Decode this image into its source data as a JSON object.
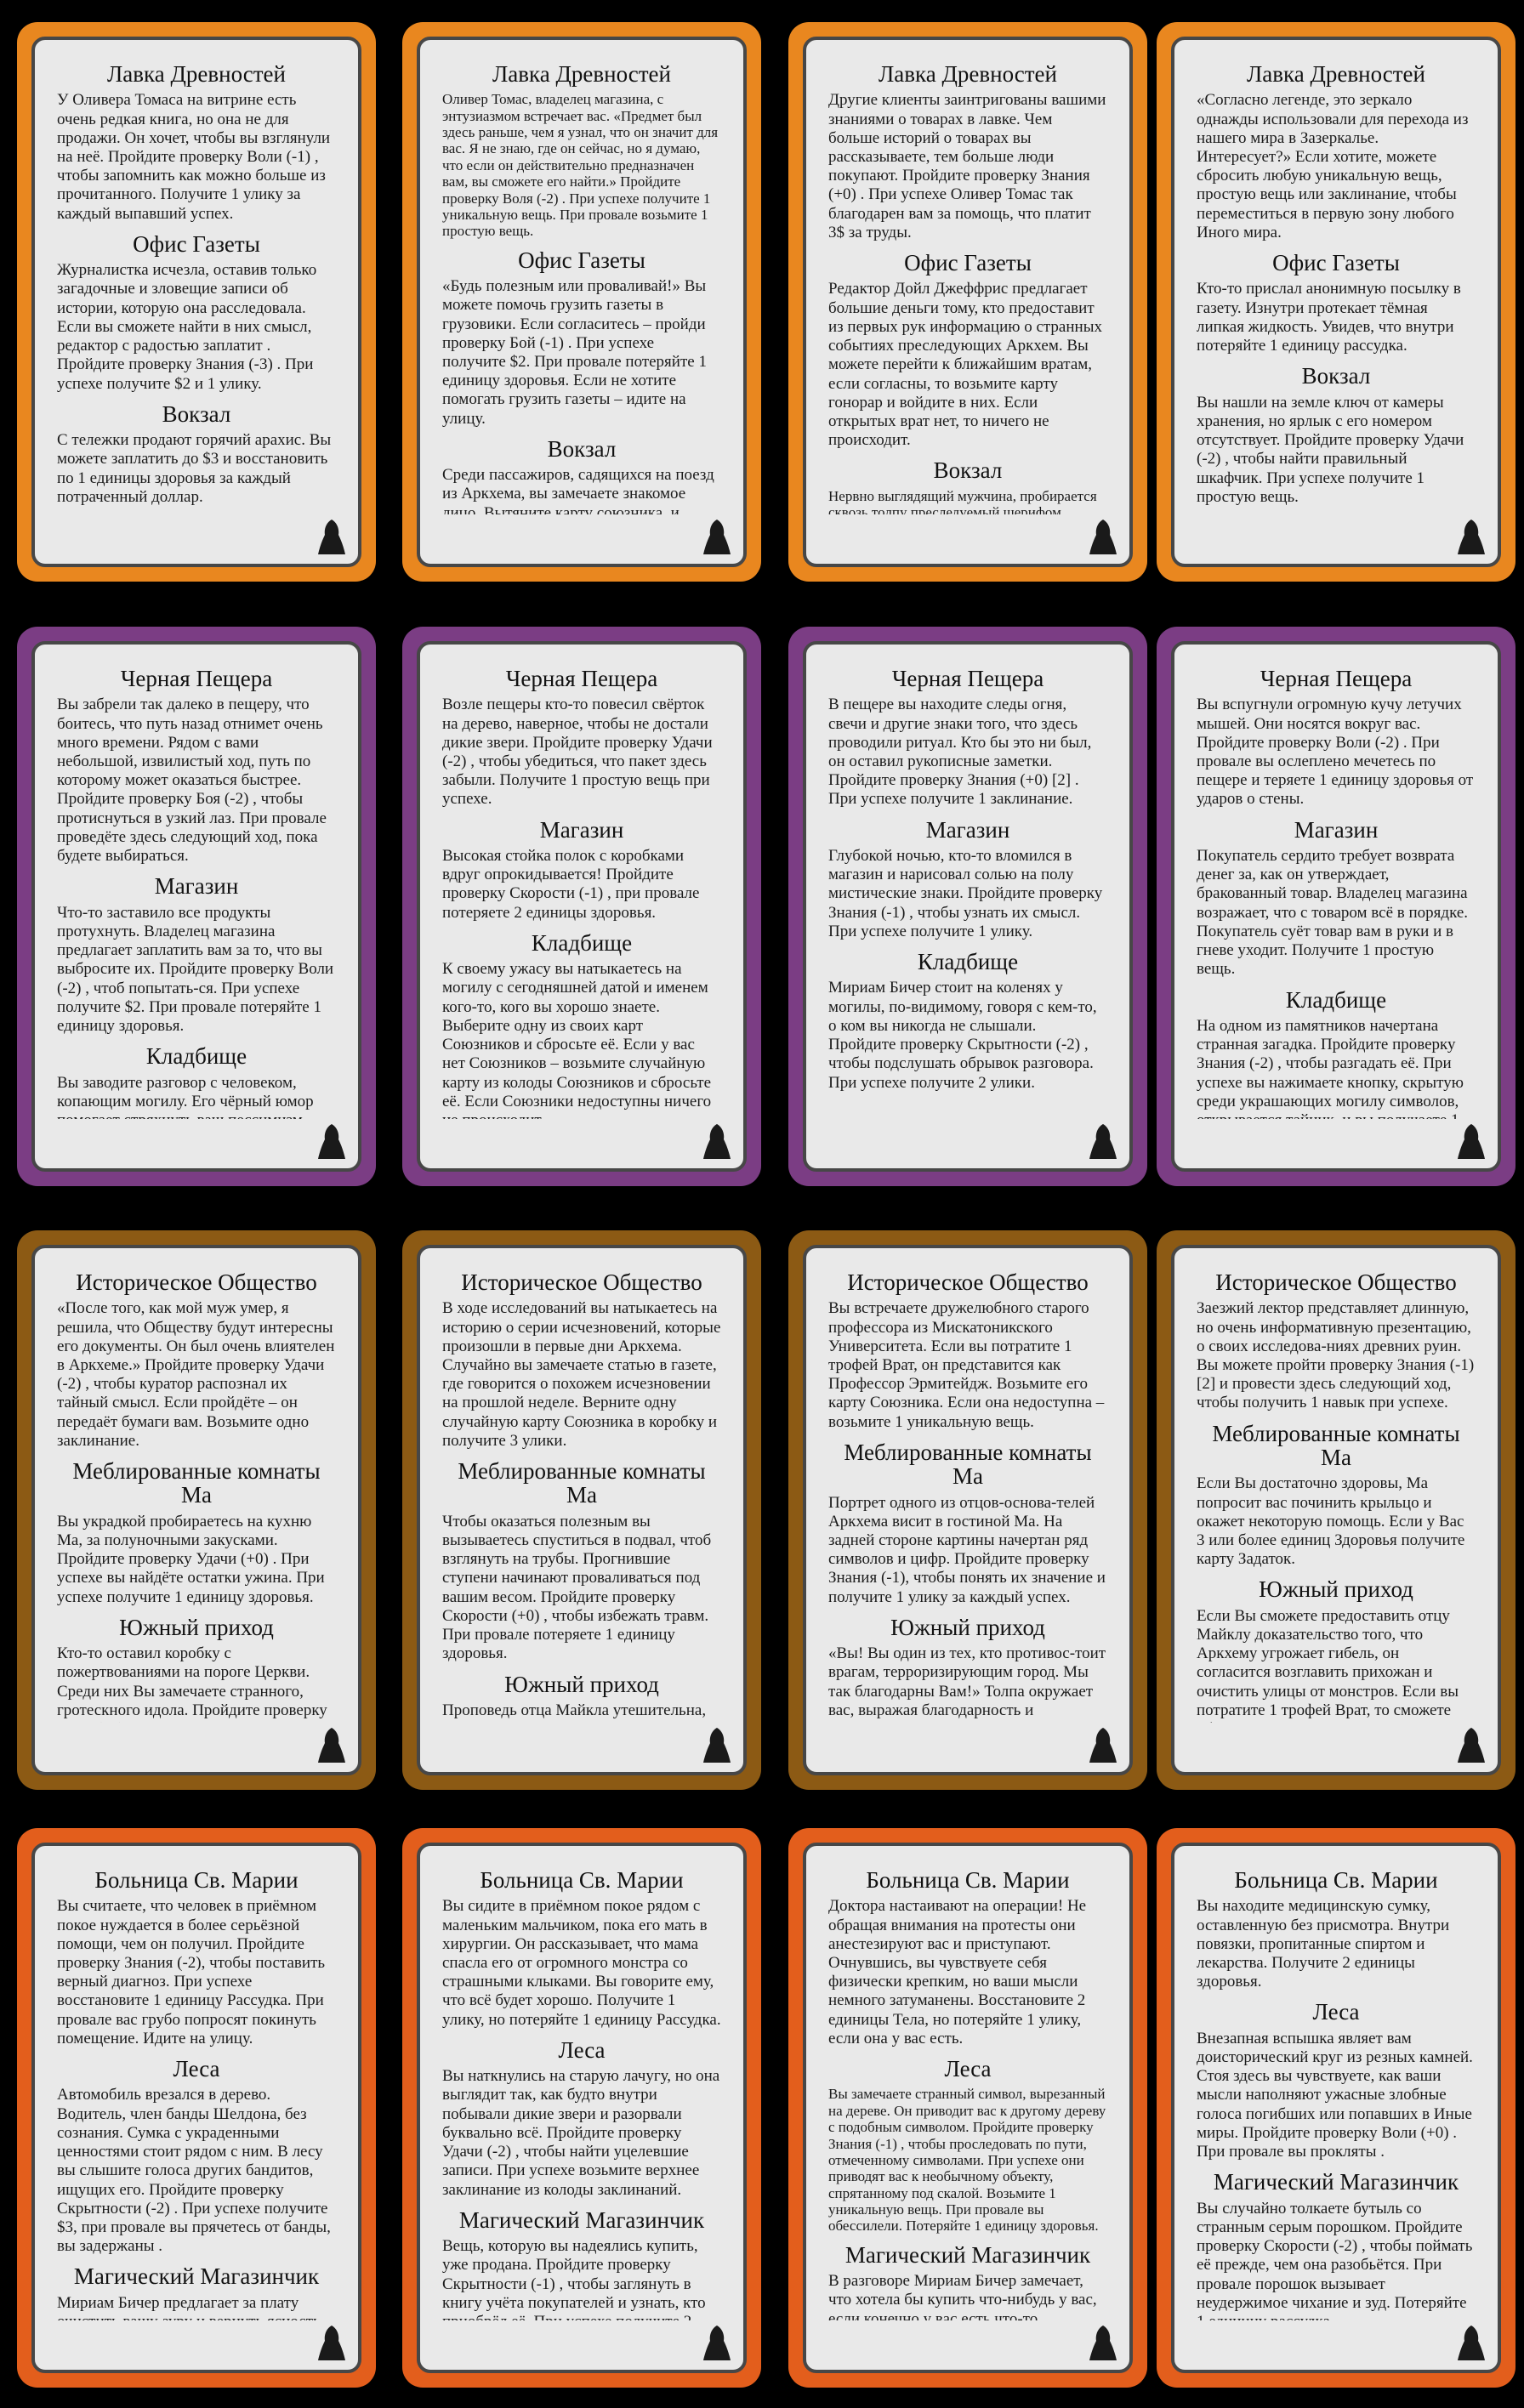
{
  "cards": [
    {
      "color": "#e9871f",
      "sections": [
        {
          "title": "Лавка Древностей",
          "text": "У Оливера Томаса на витрине есть очень редкая книга, но она не для продажи. Он хочет, чтобы вы взглянули на неё. Пройдите проверку Воли (-1) , чтобы запомнить как можно больше из прочитанного. Получите 1 улику за каждый выпавший успех."
        },
        {
          "title": "Офис Газеты",
          "text": "Журналистка исчезла, оставив только загадочные и зловещие записи об истории, которую она расследовала. Если вы сможете найти в них смысл, редактор с радостью заплатит . Пройдите проверку Знания (-3) . При успехе получите $2 и 1 улику."
        },
        {
          "title": "Вокзал",
          "text": "С тележки продают горячий арахис. Вы можете заплатить до $3 и восстановить по 1 единицы здоровья за каждый потраченный доллар."
        }
      ]
    },
    {
      "color": "#e9871f",
      "sections": [
        {
          "title": "Лавка Древностей",
          "text": "Оливер Томас, владелец магазина, с энтузиазмом встречает вас. «Предмет был здесь раньше, чем я узнал, что он значит для вас. Я не знаю, где он сейчас, но я думаю, что если он действительно предназначен вам, вы сможете его найти.» Пройдите проверку Воля (-2) . При успехе получите 1 уникальную вещь. При провале возьмите 1 простую вещь."
        },
        {
          "title": "Офис Газеты",
          "text": "«Будь полезным или проваливай!» Вы можете помочь грузить газеты в грузовики. Если согласитесь – пройди проверку Бой (-1) . При успехе получите $2. При провале потеряйте 1 единицу здоровья. Если не хотите помогать грузить газеты – идите на улицу."
        },
        {
          "title": "Вокзал",
          "text": "Среди пассажиров, садящихся на поезд из Аркхема, вы замечаете знакомое лицо. Вытяните карту союзника, и пройдите проверку Воля (-2) [2] . При успехе вы убеждаете друга остаться и мочь вам, оставьте эту карту себе. При провале верните карту союзника в коробку."
        }
      ]
    },
    {
      "color": "#e9871f",
      "sections": [
        {
          "title": "Лавка Древностей",
          "text": "Другие клиенты заинтригованы вашими знаниями о товарах в лавке. Чем больше историй о товарах вы рассказываете, тем больше люди покупают. Пройдите проверку Знания (+0) . При успехе Оливер Томас так благодарен вам за помощь, что платит 3$ за труды."
        },
        {
          "title": "Офис Газеты",
          "text": "Редактор Дойл Джеффрис предлагает большие деньги тому, кто предоставит из первых рук информацию о странных событиях преследующих Аркхем. Вы можете перейти к ближайшим вратам, если согласны, то возьмите карту гонорар и войдите в них. Если открытых врат нет, то ничего не происходит."
        },
        {
          "title": "Вокзал",
          "text": "Нервно выглядящий мужчина, пробирается сквозь толпу преследуемый шерифом Энглом. Столкнувшись с вами он падает на землю и роняет свёрток . Вы видите что на нём слово - рукопис. Пройдите проверку Скорости (-2) чтобы успеть схватить свёрток и скрыться до прибытия шерифа. При успехе получите 1 уникальный предмет."
        }
      ]
    },
    {
      "color": "#e9871f",
      "sections": [
        {
          "title": "Лавка Древностей",
          "text": "«Согласно легенде, это зеркало однажды использовали для перехода из нашего мира в Зазеркалье. Интересует?» Если хотите, можете сбросить любую уникальную вещь, простую вещь или заклинание, чтобы переместиться в первую зону любого Иного мира."
        },
        {
          "title": "Офис Газеты",
          "text": "Кто-то прислал анонимную посылку в газету. Изнутри протекает тёмная липкая жидкость. Увидев, что внутри потеряйте 1 единицу рассудка."
        },
        {
          "title": "Вокзал",
          "text": "Вы нашли на земле ключ от камеры хранения, но ярлык с его номером отсутствует. Пройдите проверку Удачи (-2) , чтобы найти правильный шкафчик. При успехе получите 1 простую вещь."
        }
      ]
    },
    {
      "color": "#7b3d84",
      "sections": [
        {
          "title": "Черная Пещера",
          "text": "Вы забрели так далеко в пещеру, что боитесь, что путь назад отнимет очень много времени. Рядом с вами небольшой, извилистый ход, путь по которому может оказаться быстрее. Пройдите проверку Боя (-2) , чтобы протиснуться в узкий лаз. При провале проведёте здесь следующий ход, пока будете выбираться."
        },
        {
          "title": "Магазин",
          "text": "Что-то заставило все продукты протухнуть. Владелец магазина предлагает заплатить вам за то, что вы выбросите их. Пройдите проверку Воли (-2) , чтоб попытать-ся. При успехе получите $2. При провале потеряйте 1 единицу здоровья."
        },
        {
          "title": "Кладбище",
          "text": "Вы заводите разговор с человеком, копающим могилу. Его чёрный юмор помогает стряхнуть ваш пессимизм. Восстановите 1 единицу рассудка."
        }
      ]
    },
    {
      "color": "#7b3d84",
      "sections": [
        {
          "title": "Черная Пещера",
          "text": "Возле пещеры кто-то повесил свёрток на дерево, наверное, чтобы не достали дикие звери. Пройдите проверку Удачи (-2) , чтобы убедиться, что пакет здесь забыли. Получите 1 простую вещь при успехе."
        },
        {
          "title": "Магазин",
          "text": "Высокая стойка полок с коробками вдруг опрокидывается! Пройдите проверку Скорости (-1) , при провале потеряете 2 единицы здоровья."
        },
        {
          "title": "Кладбище",
          "text": "К своему ужасу вы натыкаетесь на могилу с сегодняшней датой и именем кого-то, кого вы хорошо знаете. Выберите одну из своих карт Союзников и сбросьте её. Если у вас нет Союзников – возьмите случайную карту из колоды Союзников и сбросьте её. Если Союзники недоступны ничего не происходит."
        }
      ]
    },
    {
      "color": "#7b3d84",
      "sections": [
        {
          "title": "Черная Пещера",
          "text": "В пещере вы находите следы огня, свечи и другие знаки того, что здесь проводили ритуал. Кто бы это ни был, он оставил рукописные заметки. Пройдите проверку Знания (+0) [2] . При успехе получите 1 заклинание."
        },
        {
          "title": "Магазин",
          "text": "Глубокой ночью, кто-то вломился в магазин и нарисовал солью на полу мистические знаки. Пройдите проверку Знания (-1) , чтобы узнать их смысл. При успехе получите 1 улику."
        },
        {
          "title": "Кладбище",
          "text": "Мириам Бичер стоит на коленях у могилы, по-видимому, говоря с кем-то, о ком вы никогда не слышали. Пройдите проверку Скрытности (-2) , чтобы подслушать обрывок разговора. При успехе получите 2 улики."
        }
      ]
    },
    {
      "color": "#7b3d84",
      "sections": [
        {
          "title": "Черная Пещера",
          "text": "Вы вспугнули огромную кучу летучих мышей. Они носятся вокруг вас. Пройдите проверку Воли (-2) . При провале вы ослеплено мечетесь по пещере и теряете 1 единицу здоровья от ударов о стены."
        },
        {
          "title": "Магазин",
          "text": "Покупатель сердито требует возврата денег за, как он утверждает, бракованный товар. Владелец магазина возражает, что с товаром всё в порядке. Покупатель суёт товар вам в руки и в гневе уходит. Получите 1 простую вещь."
        },
        {
          "title": "Кладбище",
          "text": "На одном из памятников начертана странная загадка. Пройдите проверку Знания (-2) , чтобы разгадать её. При успехе вы нажимаете кнопку, скрытую среди украшающих могилу символов, открывается тайник, и вы получаете 1 уникальную вещь. При провале ничего не происходит."
        }
      ]
    },
    {
      "color": "#8c5a14",
      "sections": [
        {
          "title": "Историческое Общество",
          "text": "«После того, как мой муж умер, я решила, что Обществу будут интересны его документы. Он был очень влиятелен в Аркхеме.» Пройдите проверку Удачи (-2) , чтобы куратор распознал их тайный смысл. Если пройдёте – он передаёт бумаги вам. Возьмите одно заклинание."
        },
        {
          "title": "Меблированные комнаты Ма",
          "text": "Вы украдкой пробираетесь на кухню Ма, за полуночными закусками. Пройдите проверку Удачи (+0) . При успехе вы найдёте остатки ужина. При успехе получите 1 единицу здоровья."
        },
        {
          "title": "Южный приход",
          "text": "Кто-то оставил коробку с пожертвованиями на пороге Церкви. Среди них Вы замечаете странного, гротескного идола. Пройдите проверку Воли (+0) . При провале вы проклять ."
        }
      ]
    },
    {
      "color": "#8c5a14",
      "sections": [
        {
          "title": "Историческое Общество",
          "text": "В ходе исследований вы натыкаетесь на историю о серии исчезновений, которые произошли в первые дни Аркхема. Случайно вы замечаете статью в газете, где говорится о похожем исчезновении на прошлой неделе. Верните одну случайную карту Союзника в коробку и получите 3 улики."
        },
        {
          "title": "Меблированные комнаты Ма",
          "text": "Чтобы оказаться полезным вы вызываетесь спуститься в подвал, чтоб взглянуть на трубы. Прогнившие ступени начинают проваливаться под вашим весом. Пройдите проверку Скорости (+0) , чтобы избежать травм. При провале потеряете 1 единицу здоровья."
        },
        {
          "title": "Южный приход",
          "text": "Проповедь отца Майкла утешительна, но немного скучна, и вы задремали. Проведите здесь следующий ход и восстановите Рассудок до максимума."
        }
      ]
    },
    {
      "color": "#8c5a14",
      "sections": [
        {
          "title": "Историческое Общество",
          "text": "Вы встречаете дружелюбного старого профессора из Мискатоникского Университета. Если вы потратите 1 трофей Врат, он представится как Профессор Эрмитейдж. Возьмите его карту Союзника. Если она недоступна – возьмите 1 уникальную вещь."
        },
        {
          "title": "Меблированные комнаты Ма",
          "text": "Портрет одного из отцов-основа-телей Аркхема висит в гостиной Ма. На задней стороне картины начертан ряд символов и цифр. Пройдите проверку Знания (-1), чтобы понять их значение и получите 1 улику за каждый успех."
        },
        {
          "title": "Южный приход",
          "text": "«Вы! Вы один из тех, кто противос-тоит врагам, терроризирующим город. Мы так благодарны Вам!» Толпа окружает вас, выражая благодарность и восхищение. Получите 2 единицы рассудка."
        }
      ]
    },
    {
      "color": "#8c5a14",
      "sections": [
        {
          "title": "Историческое Общество",
          "text": "Заезжий лектор представляет длинную, но очень информативную презентацию, о своих исследова-ниях древних руин. Вы можете пройти проверку Знания (-1) [2] и провести здесь следующий ход, чтобы получить 1 навык при успехе."
        },
        {
          "title": "Меблированные комнаты Ма",
          "text": "Если Вы достаточно здоровы, Ма попросит вас починить крыльцо и окажет некоторую помощь. Если у Вас 3 или более единиц Здоровья получите карту Задаток."
        },
        {
          "title": "Южный приход",
          "text": "Если Вы сможете предоставить отцу Майклу доказательство того, что Аркхему угрожает гибель, он согласится возглавить прихожан и очистить улицы от монстров. Если вы потратите 1 трофей Врат, то сможете убрать всех монстров из района Саутсайд."
        }
      ]
    },
    {
      "color": "#e35e1c",
      "sections": [
        {
          "title": "Больница Св. Марии",
          "text": "Вы считаете, что человек в приёмном покое нуждается в более серьёзной помощи, чем он получил. Пройдите проверку Знания (-2), чтобы поставить верный диагноз. При успехе восстановите 1 единицу Рассудка. При провале вас грубо попросят покинуть помещение. Идите на улицу."
        },
        {
          "title": "Леса",
          "text": "Автомобиль врезался в дерево. Водитель, член банды Шелдона, без сознания. Сумка с украденными ценностями стоит рядом с ним. В лесу вы слышите голоса других бандитов, ищущих его. Пройдите проверку Скрытности (-2) . При успехе получите $3, при провале вы прячетесь от банды, вы задержаны ."
        },
        {
          "title": "Магический Магазинчик",
          "text": "Мириам Бичер предлагает за плату очистить вашу ауру и вернуть ясность разуму. Если вы сбросите одну уникальную вещь и потратите $3, то будете благословлены ."
        }
      ]
    },
    {
      "color": "#e35e1c",
      "sections": [
        {
          "title": "Больница Св. Марии",
          "text": "Вы сидите в приёмном покое рядом с маленьким мальчиком, пока его мать в хирургии. Он рассказывает, что мама спасла его от огромного монстра со страшными клыками. Вы говорите ему, что всё будет хорошо. Получите 1 улику, но потеряйте 1 единицу Рассудка."
        },
        {
          "title": "Леса",
          "text": "Вы наткнулись на старую лачугу, но она выглядит так, как будто внутри побывали дикие звери и разорвали буквально всё. Пройдите проверку Удачи (-2) , чтобы найти уцелевшие записи. При успехе возьмите верхнее заклинание из колоды заклинаний."
        },
        {
          "title": "Магический Магазинчик",
          "text": "Вещь, которую вы надеялись купить, уже продана. Пройдите проверку Скрытности (-1) , чтобы заглянуть в книгу учёта покупателей и узнать, кто приобрёл её. При успехе получите 2 улики."
        }
      ]
    },
    {
      "color": "#e35e1c",
      "sections": [
        {
          "title": "Больница Св. Марии",
          "text": "Доктора настаивают на операции! Не обращая внимания на протесты они анестезируют вас и приступают. Очнувшись, вы чувствуете себя физически крепким, но ваши мысли немного затуманены. Восстановите 2 единицы Тела, но потеряйте 1 улику, если она у вас есть."
        },
        {
          "title": "Леса",
          "text": "Вы замечаете странный символ, вырезанный на дереве. Он приводит вас к другому дереву с подобным символом. Пройдите проверку Знания (-1) , чтобы проследовать по пути, отмеченному символами. При успехе они приводят вас к необычному объекту, спрятанному под скалой. Возьмите 1 уникальную вещь. При провале вы обессилели. Потеряйте 1 единицу здоровья."
        },
        {
          "title": "Магический Магазинчик",
          "text": "В разговоре Мириам Бичер замечает, что хотела бы купить что-нибудь у вас, если конечно у вас есть что-то интересное. Возьмите верхнюю карту из колоды уникальных вещей. Если хотите оставьте её себе – сбросьте любую уникальную вещь или заклинание."
        }
      ]
    },
    {
      "color": "#e35e1c",
      "sections": [
        {
          "title": "Больница Св. Марии",
          "text": "Вы находите медицинскую сумку, оставленную без присмотра. Внутри повязки, пропитанные спиртом и лекарства. Получите 2 единицы здоровья."
        },
        {
          "title": "Леса",
          "text": "Внезапная вспышка являет вам доисторический круг из резных камней. Стоя здесь вы чувствуете, как ваши мысли наполняют ужасные злобные голоса погибших или попавших в Иные миры. Пройдите проверку Воли (+0) . При провале вы прокляты ."
        },
        {
          "title": "Магический Магазинчик",
          "text": "Вы случайно толкаете бутыль со странным серым порошком. Пройдите проверку Скорости (-2) , чтобы поймать её прежде, чем она разобьётся. При провале порошок вызывает неудержимое чихание и зуд. Потеряйте 1 единицу рассудка."
        }
      ]
    }
  ]
}
